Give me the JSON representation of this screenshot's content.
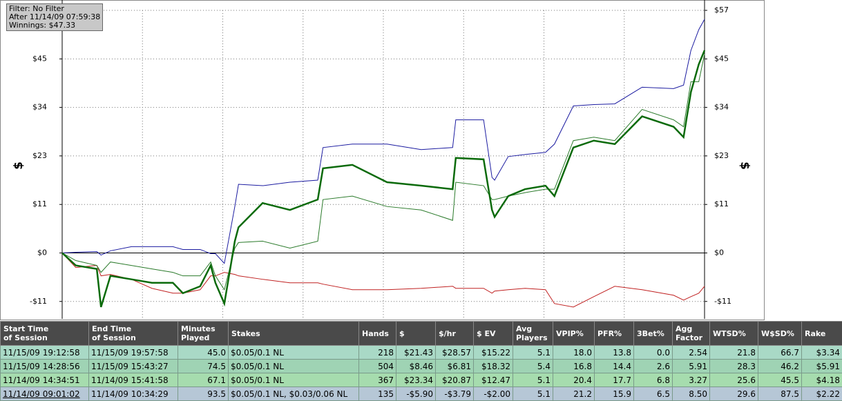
{
  "filter_box": {
    "lines": [
      "Filter: No Filter",
      "After 11/14/09 07:59:38",
      "Winnings: $47.33"
    ]
  },
  "chart_data": {
    "type": "line",
    "y_axis_label": "$",
    "grid": true,
    "x": [
      0,
      26,
      66,
      74,
      92,
      132,
      171,
      211,
      230,
      263,
      283,
      292,
      309,
      329,
      336,
      382,
      434,
      487,
      497,
      553,
      619,
      684,
      744,
      750,
      803,
      819,
      824,
      850,
      882,
      921,
      938,
      974,
      1013,
      1053,
      1105,
      1165,
      1184,
      1198,
      1213,
      1224
    ],
    "xlim": [
      0,
      1224
    ],
    "xticks": [
      153,
      306,
      459,
      612,
      765,
      918,
      1071
    ],
    "ylim": [
      -15.4,
      56.67
    ],
    "yticks": [
      {
        "value": -11.33,
        "label": "-$11"
      },
      {
        "value": 0,
        "label": "$0"
      },
      {
        "value": 11.33,
        "label": "$11"
      },
      {
        "value": 22.67,
        "label": "$23"
      },
      {
        "value": 34,
        "label": "$34"
      },
      {
        "value": 45.33,
        "label": "$45"
      },
      {
        "value": 56.67,
        "label": "$57"
      }
    ],
    "series": [
      {
        "color": "#c02020",
        "width": 1,
        "values": [
          0,
          -3.4,
          -2.92,
          -5.35,
          -5.02,
          -6.16,
          -8.26,
          -9.4,
          -9.4,
          -8.59,
          -5.35,
          -5.35,
          -4.54,
          -5.02,
          -5.35,
          -6.16,
          -6.97,
          -6.97,
          -7.29,
          -8.59,
          -8.59,
          -8.26,
          -7.78,
          -8.26,
          -8.26,
          -9.4,
          -8.91,
          -8.59,
          -8.26,
          -8.59,
          -11.83,
          -12.64,
          -10.21,
          -7.78,
          -8.59,
          -9.88,
          -11.02,
          -10.21,
          -9.4,
          -7.78
        ]
      },
      {
        "color": "#1a1aa0",
        "width": 1,
        "values": [
          0,
          0.16,
          0.32,
          -0.49,
          0.49,
          1.46,
          1.46,
          1.46,
          0.81,
          0.81,
          -0.16,
          -0.16,
          -2.43,
          10.85,
          16.04,
          15.71,
          16.52,
          17.01,
          24.62,
          25.43,
          25.43,
          24.14,
          24.62,
          31.1,
          31.1,
          17.66,
          17.01,
          22.52,
          23,
          23.49,
          25.43,
          34.34,
          34.67,
          34.83,
          38.72,
          38.39,
          39.2,
          47.3,
          52.16,
          54.59
        ]
      },
      {
        "color": "#2a7a2a",
        "width": 1,
        "values": [
          0,
          -1.78,
          -2.92,
          -4.54,
          -2.11,
          -2.92,
          -3.73,
          -4.54,
          -5.35,
          -5.35,
          -2.11,
          -5.35,
          -8.59,
          1.13,
          2.43,
          2.75,
          1.13,
          2.75,
          12.47,
          13.28,
          10.85,
          10.04,
          7.61,
          16.52,
          15.71,
          12.47,
          12.47,
          13.28,
          14.09,
          14.9,
          14.9,
          26.24,
          27.05,
          26.24,
          33.53,
          31.1,
          29.48,
          40.01,
          40.01,
          46.49
        ]
      },
      {
        "color": "#0a6a0a",
        "width": 2.5,
        "values": [
          0,
          -2.92,
          -3.73,
          -12.64,
          -5.35,
          -6.16,
          -6.97,
          -6.97,
          -9.4,
          -7.78,
          -2.92,
          -6.97,
          -11.83,
          2.75,
          5.99,
          11.66,
          10.04,
          12.47,
          19.76,
          20.57,
          16.52,
          15.71,
          14.9,
          22.19,
          21.87,
          10.04,
          8.42,
          13.28,
          14.9,
          15.71,
          13.28,
          24.62,
          26.24,
          25.43,
          31.91,
          29.48,
          27.05,
          37.58,
          44.06,
          47.33
        ]
      }
    ]
  },
  "table": {
    "header": [
      "Start Time\nof Session",
      "End Time\nof Session",
      "Minutes\nPlayed",
      "Stakes",
      "Hands",
      "$",
      "$/hr",
      "$ EV",
      "Avg\nPlayers",
      "VPIP%",
      "PFR%",
      "3Bet%",
      "Agg\nFactor",
      "WTSD%",
      "W$SD%",
      "Rake"
    ],
    "rows": [
      [
        "11/15/09 19:12:58",
        "11/15/09 19:57:58",
        "45.0",
        "$0.05/0.1 NL",
        "218",
        "$21.43",
        "$28.57",
        "$15.22",
        "5.1",
        "18.0",
        "13.8",
        "0.0",
        "2.54",
        "21.8",
        "66.7",
        "$3.34"
      ],
      [
        "11/15/09 14:28:56",
        "11/15/09 15:43:27",
        "74.5",
        "$0.05/0.1 NL",
        "504",
        "$8.46",
        "$6.81",
        "$18.32",
        "5.4",
        "16.8",
        "14.4",
        "2.6",
        "5.91",
        "28.3",
        "46.2",
        "$5.91"
      ],
      [
        "11/14/09 14:34:51",
        "11/14/09 15:41:58",
        "67.1",
        "$0.05/0.1 NL",
        "367",
        "$23.34",
        "$20.87",
        "$12.47",
        "5.1",
        "20.4",
        "17.7",
        "6.8",
        "3.27",
        "25.6",
        "45.5",
        "$4.18"
      ],
      [
        "11/14/09 09:01:02",
        "11/14/09 10:34:29",
        "93.5",
        "$0.05/0.1 NL, $0.03/0.06 NL",
        "135",
        "-$5.90",
        "-$3.79",
        "-$2.00",
        "5.1",
        "21.2",
        "15.9",
        "6.5",
        "8.50",
        "29.6",
        "87.5",
        "$2.22"
      ]
    ]
  }
}
